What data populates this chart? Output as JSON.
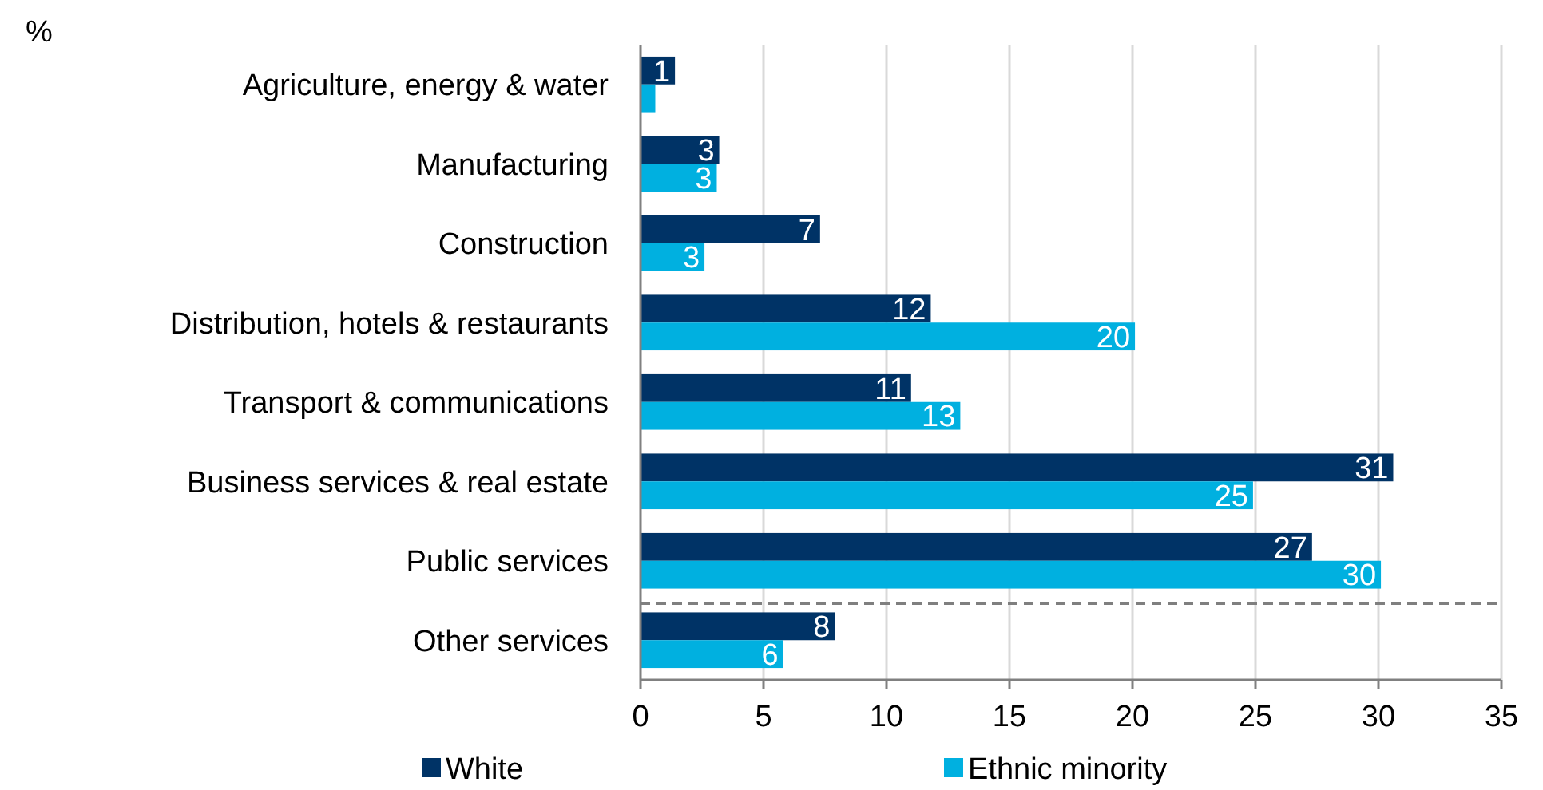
{
  "chart_data": {
    "type": "bar",
    "orientation": "horizontal",
    "ylabel": "%",
    "categories": [
      "Agriculture, energy & water",
      "Manufacturing",
      "Construction",
      "Distribution, hotels & restaurants",
      "Transport & communications",
      "Business services & real estate",
      "Public services",
      "Other services"
    ],
    "series": [
      {
        "name": "White",
        "color": "#003366",
        "values": [
          1.4,
          3.2,
          7.3,
          11.8,
          11.0,
          30.6,
          27.3,
          7.9
        ],
        "value_labels": [
          "1",
          "3",
          "7",
          "12",
          "11",
          "31",
          "27",
          "8"
        ]
      },
      {
        "name": "Ethnic minority",
        "color": "#00b0e0",
        "values": [
          0.6,
          3.1,
          2.6,
          20.1,
          13.0,
          24.9,
          30.1,
          5.8
        ],
        "value_labels": [
          null,
          "3",
          "3",
          "20",
          "13",
          "25",
          "30",
          "6"
        ]
      }
    ],
    "xlim": [
      0,
      35
    ],
    "xticks": [
      0,
      5,
      10,
      15,
      20,
      25,
      30,
      35
    ],
    "grid": "x",
    "legend": "bottom",
    "ref_lines": [
      {
        "axis": "y",
        "value": "Other services",
        "color": "#7f7f7f",
        "line_style": "dashed"
      }
    ]
  }
}
